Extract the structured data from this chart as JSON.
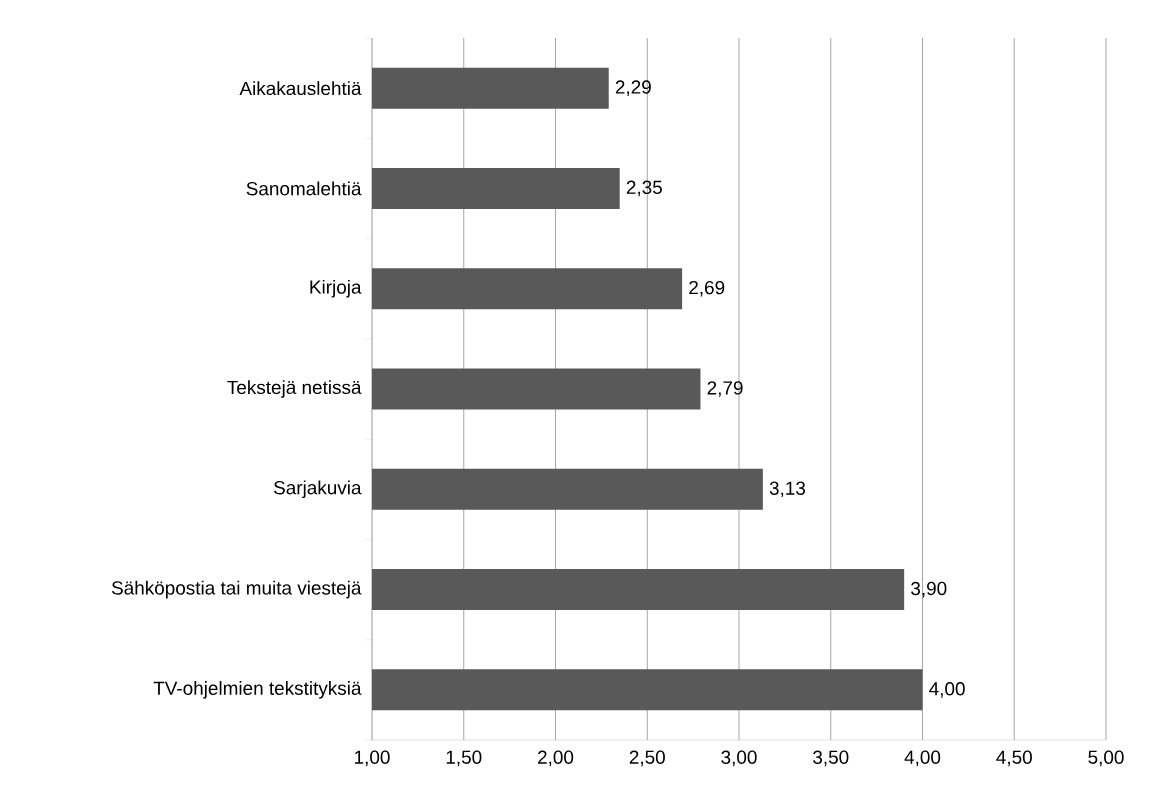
{
  "chart_data": {
    "type": "bar",
    "orientation": "horizontal",
    "categories": [
      "Aikakauslehtiä",
      "Sanomalehtiä",
      "Kirjoja",
      "Tekstejä netissä",
      "Sarjakuvia",
      "Sähköpostia tai muita viestejä",
      "TV-ohjelmien tekstityksiä"
    ],
    "values": [
      2.29,
      2.35,
      2.69,
      2.79,
      3.13,
      3.9,
      4.0
    ],
    "value_labels": [
      "2,29",
      "2,35",
      "2,69",
      "2,79",
      "3,13",
      "3,90",
      "4,00"
    ],
    "color": "#595959",
    "xlim": [
      1,
      5
    ],
    "xticks": [
      {
        "value": 1,
        "label": "1,00"
      },
      {
        "value": 1.5,
        "label": "1,50"
      },
      {
        "value": 2,
        "label": "2,00"
      },
      {
        "value": 2.5,
        "label": "2,50"
      },
      {
        "value": 3,
        "label": "3,00"
      },
      {
        "value": 3.5,
        "label": "3,50"
      },
      {
        "value": 4,
        "label": "4,00"
      },
      {
        "value": 4.5,
        "label": "4,50"
      },
      {
        "value": 5,
        "label": "5,00"
      }
    ],
    "grid": "x"
  }
}
